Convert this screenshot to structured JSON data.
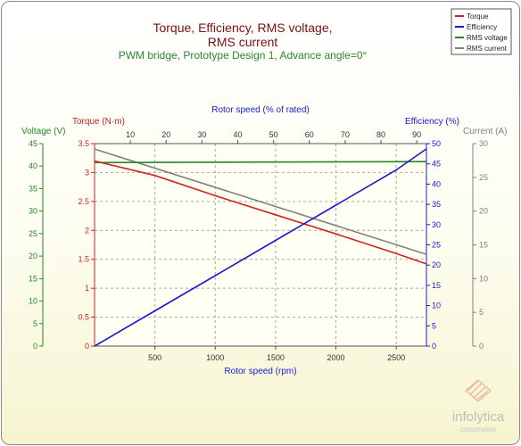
{
  "chart_data": {
    "type": "line",
    "title_line1": "Torque, Efficiency, RMS voltage,",
    "title_line2": "RMS current",
    "subtitle": "PWM bridge, Prototype Design 1, Advance angle=0°",
    "xlabel": "Rotor speed (rpm)",
    "x2label": "Rotor speed (% of rated)",
    "xlim": [
      0,
      2750
    ],
    "x2lim": [
      0,
      92.7
    ],
    "xticks": [
      500,
      1000,
      1500,
      2000,
      2500
    ],
    "x2ticks": [
      10,
      20,
      30,
      40,
      50,
      60,
      70,
      80,
      90
    ],
    "axes": {
      "torque": {
        "label": "Torque (N·m)",
        "lim": [
          0,
          3.5
        ],
        "ticks": [
          "0",
          "0.5",
          "1",
          "1.5",
          "2",
          "2.5",
          "3",
          "3.5"
        ],
        "color": "#cc2222"
      },
      "voltage": {
        "label": "Voltage (V)",
        "lim": [
          0,
          45
        ],
        "ticks": [
          "0",
          "5",
          "10",
          "15",
          "20",
          "25",
          "30",
          "35",
          "40",
          "45"
        ],
        "color": "#228822"
      },
      "efficiency": {
        "label": "Efficiency (%)",
        "lim": [
          0,
          50
        ],
        "ticks": [
          "0",
          "5",
          "10",
          "15",
          "20",
          "25",
          "30",
          "35",
          "40",
          "45",
          "50"
        ],
        "color": "#1a1acc"
      },
      "current": {
        "label": "Current (A)",
        "lim": [
          0,
          30
        ],
        "ticks": [
          "0",
          "5",
          "10",
          "15",
          "20",
          "25",
          "30"
        ],
        "color": "#808080"
      }
    },
    "series": [
      {
        "name": "Torque",
        "axis": "torque",
        "color": "#cc2222",
        "x": [
          0,
          500,
          1000,
          1500,
          2000,
          2500,
          2750
        ],
        "y": [
          3.2,
          2.95,
          2.6,
          2.27,
          1.94,
          1.6,
          1.42
        ]
      },
      {
        "name": "Efficiency",
        "axis": "efficiency",
        "color": "#1a1acc",
        "x": [
          0,
          500,
          1000,
          1500,
          2000,
          2500,
          2750
        ],
        "y": [
          0,
          8.7,
          17.4,
          26.1,
          34.8,
          43.5,
          48.7
        ]
      },
      {
        "name": "RMS voltage",
        "axis": "voltage",
        "color": "#228822",
        "x": [
          0,
          2750
        ],
        "y": [
          40.8,
          41.0
        ]
      },
      {
        "name": "RMS current",
        "axis": "current",
        "color": "#808080",
        "x": [
          0,
          2750
        ],
        "y": [
          29.2,
          13.6
        ]
      }
    ],
    "grid": true,
    "legend_position": "top-right"
  },
  "branding": {
    "name": "infolytica",
    "tagline": "corporation"
  }
}
